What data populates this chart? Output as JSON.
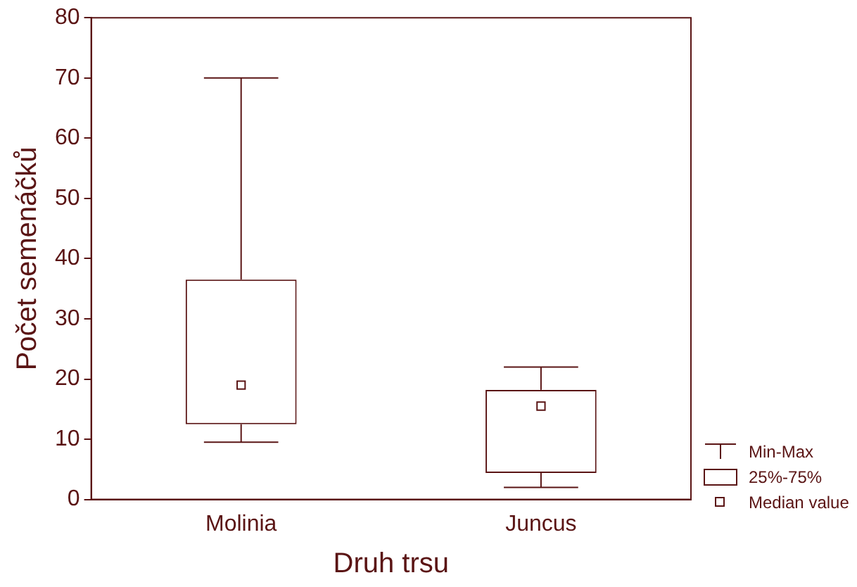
{
  "chart_data": {
    "type": "box",
    "xlabel": "Druh trsu",
    "ylabel": "Počet semenáčků",
    "categories": [
      "Molinia",
      "Juncus"
    ],
    "boxes": [
      {
        "low": 9.5,
        "q1": 12.5,
        "median": 19,
        "q3": 36.5,
        "high": 70
      },
      {
        "low": 2,
        "q1": 4.4,
        "median": 15.5,
        "q3": 18.2,
        "high": 22
      }
    ],
    "color": "#5a1414",
    "ylim": [
      0,
      80
    ],
    "yticks": [
      0,
      10,
      20,
      30,
      40,
      50,
      60,
      70,
      80
    ],
    "grid": false,
    "annotations": [
      "Min-Max",
      "25%-75%",
      "Median value"
    ]
  }
}
